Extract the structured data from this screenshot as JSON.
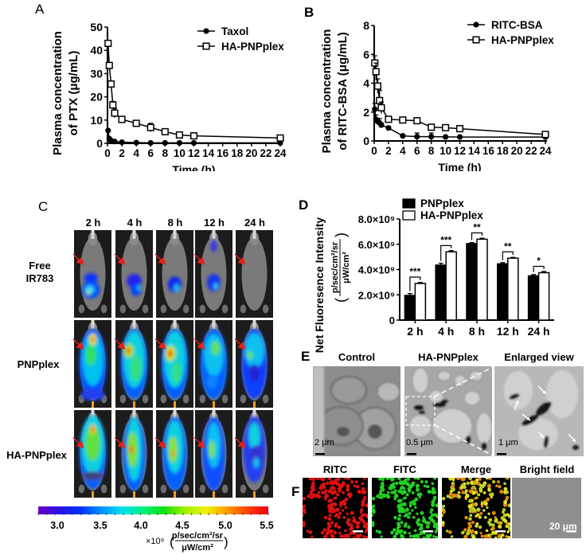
{
  "panels": {
    "A": {
      "label": "A"
    },
    "B": {
      "label": "B"
    },
    "C": {
      "label": "C"
    },
    "D": {
      "label": "D"
    },
    "E": {
      "label": "E"
    },
    "F": {
      "label": "F"
    }
  },
  "colors": {
    "black": "#000000",
    "white": "#ffffff",
    "mouse_bg": "#1a1a1a",
    "arrow_red": "#e8201a"
  },
  "chart_data": [
    {
      "id": "A",
      "type": "line",
      "title": "",
      "xlabel": "Time (h)",
      "ylabel_line1": "Plasma concentration",
      "ylabel_line2": "of PTX (μg/mL)",
      "xlim": [
        0,
        24
      ],
      "ylim": [
        0,
        50
      ],
      "xticks": [
        0,
        2,
        4,
        6,
        8,
        10,
        12,
        14,
        16,
        18,
        20,
        22,
        24
      ],
      "yticks": [
        0,
        10,
        20,
        30,
        40,
        50
      ],
      "grid": false,
      "legend_position": "top-right",
      "series": [
        {
          "name": "Taxol",
          "marker": "filled-circle",
          "x": [
            0.083,
            0.25,
            0.5,
            1,
            2,
            4,
            6,
            8,
            10,
            12,
            24
          ],
          "y": [
            5.5,
            2.0,
            1.2,
            0.8,
            0.5,
            0.3,
            0.2,
            0.2,
            0.2,
            0.2,
            0.2
          ],
          "err": [
            0.5,
            0.5,
            0.3,
            0.2,
            0.2,
            0.1,
            0.1,
            0.1,
            0.1,
            0.1,
            0.1
          ]
        },
        {
          "name": "HA-PNPplex",
          "marker": "open-square",
          "x": [
            0.083,
            0.25,
            0.5,
            0.75,
            1,
            2,
            4,
            6,
            8,
            10,
            12,
            24
          ],
          "y": [
            43,
            33.5,
            25.5,
            16.5,
            13,
            10.3,
            8.6,
            6.8,
            5.0,
            3.6,
            3.2,
            2.3
          ],
          "err": [
            0.5,
            0.8,
            0.8,
            1.5,
            2.0,
            0.8,
            1.0,
            1.8,
            1.0,
            1.3,
            1.3,
            0.8
          ]
        }
      ]
    },
    {
      "id": "B",
      "type": "line",
      "title": "",
      "xlabel": "Time (h)",
      "ylabel_line1": "Plasma concentration",
      "ylabel_line2": "of RITC-BSA (μg/mL)",
      "xlim": [
        0,
        24
      ],
      "ylim": [
        0,
        8
      ],
      "xticks": [
        0,
        2,
        4,
        6,
        8,
        10,
        12,
        14,
        16,
        18,
        20,
        22,
        24
      ],
      "yticks": [
        0,
        2,
        4,
        6,
        8
      ],
      "grid": false,
      "legend_position": "top-right",
      "series": [
        {
          "name": "RITC-BSA",
          "marker": "filled-circle",
          "x": [
            0.083,
            0.25,
            0.5,
            0.75,
            1,
            2,
            4,
            6,
            8,
            10,
            12,
            24
          ],
          "y": [
            2.2,
            1.5,
            1.35,
            1.25,
            1.1,
            0.9,
            0.35,
            0.3,
            0.3,
            0.28,
            0.27,
            0.27
          ],
          "err": [
            0.4,
            0.3,
            0.2,
            0.3,
            0.15,
            0.1,
            0.1,
            0.25,
            0.25,
            0.05,
            0.05,
            0.05
          ]
        },
        {
          "name": "HA-PNPplex",
          "marker": "open-square",
          "x": [
            0.083,
            0.25,
            0.5,
            0.75,
            1,
            2,
            4,
            6,
            8,
            10,
            12,
            24
          ],
          "y": [
            5.4,
            4.8,
            3.8,
            2.8,
            2.3,
            1.5,
            1.45,
            1.4,
            0.95,
            0.92,
            0.85,
            0.45
          ],
          "err": [
            0.5,
            0.6,
            0.5,
            0.7,
            0.4,
            0.15,
            0.1,
            0.15,
            0.15,
            0.08,
            0.08,
            0.05
          ]
        }
      ]
    },
    {
      "id": "D",
      "type": "bar",
      "title": "",
      "xlabel": "",
      "ylabel": "Net Fluoresence Intensity",
      "ylabel_unit_num": "p/sec/cm²/sr",
      "ylabel_unit_den": "μW/cm²",
      "categories": [
        "2 h",
        "4 h",
        "8 h",
        "12 h",
        "24 h"
      ],
      "ylim": [
        0,
        8000000000.0
      ],
      "yticks": [
        0,
        2000000000.0,
        4000000000.0,
        6000000000.0,
        8000000000.0
      ],
      "ytick_labels": [
        "0",
        "2.0×10⁹",
        "4.0×10⁹",
        "6.0×10⁹",
        "8.0×10⁹"
      ],
      "legend_position": "top-left",
      "series": [
        {
          "name": "PNPplex",
          "fill": "#000000",
          "values": [
            1950000000.0,
            4350000000.0,
            6050000000.0,
            4450000000.0,
            3500000000.0
          ],
          "err": [
            150000000.0,
            150000000.0,
            80000000.0,
            100000000.0,
            100000000.0
          ]
        },
        {
          "name": "HA-PNPplex",
          "fill": "#ffffff",
          "values": [
            2900000000.0,
            5400000000.0,
            6400000000.0,
            4900000000.0,
            3750000000.0
          ],
          "err": [
            80000000.0,
            100000000.0,
            80000000.0,
            60000000.0,
            100000000.0
          ]
        }
      ],
      "significance": [
        "***",
        "***",
        "**",
        "**",
        "*"
      ]
    }
  ],
  "panel_c": {
    "time_labels": [
      "2 h",
      "4 h",
      "8 h",
      "12 h",
      "24 h"
    ],
    "rows": [
      {
        "label_line1": "Free",
        "label_line2": "IR783"
      },
      {
        "label_line1": "PNPplex",
        "label_line2": ""
      },
      {
        "label_line1": "HA-PNPplex",
        "label_line2": ""
      }
    ],
    "colorbar": {
      "ticks": [
        "3.0",
        "3.5",
        "4.0",
        "4.5",
        "5.0",
        "5.5"
      ],
      "multiplier": "×10⁹",
      "unit_num": "p/sec/cm²/sr",
      "unit_den": "μW/cm²"
    }
  },
  "panel_e": {
    "images": [
      {
        "title": "Control",
        "scale": "2 μm"
      },
      {
        "title": "HA-PNPplex",
        "scale": "0.5 μm"
      },
      {
        "title": "Enlarged view",
        "scale": "1 μm"
      }
    ]
  },
  "panel_f": {
    "images": [
      {
        "title": "RITC",
        "color": "#e01010"
      },
      {
        "title": "FITC",
        "color": "#22d022"
      },
      {
        "title": "Merge",
        "color": "#d8d020"
      },
      {
        "title": "Bright field",
        "color": "#8a8a8a",
        "scale": "20 μm"
      }
    ]
  }
}
